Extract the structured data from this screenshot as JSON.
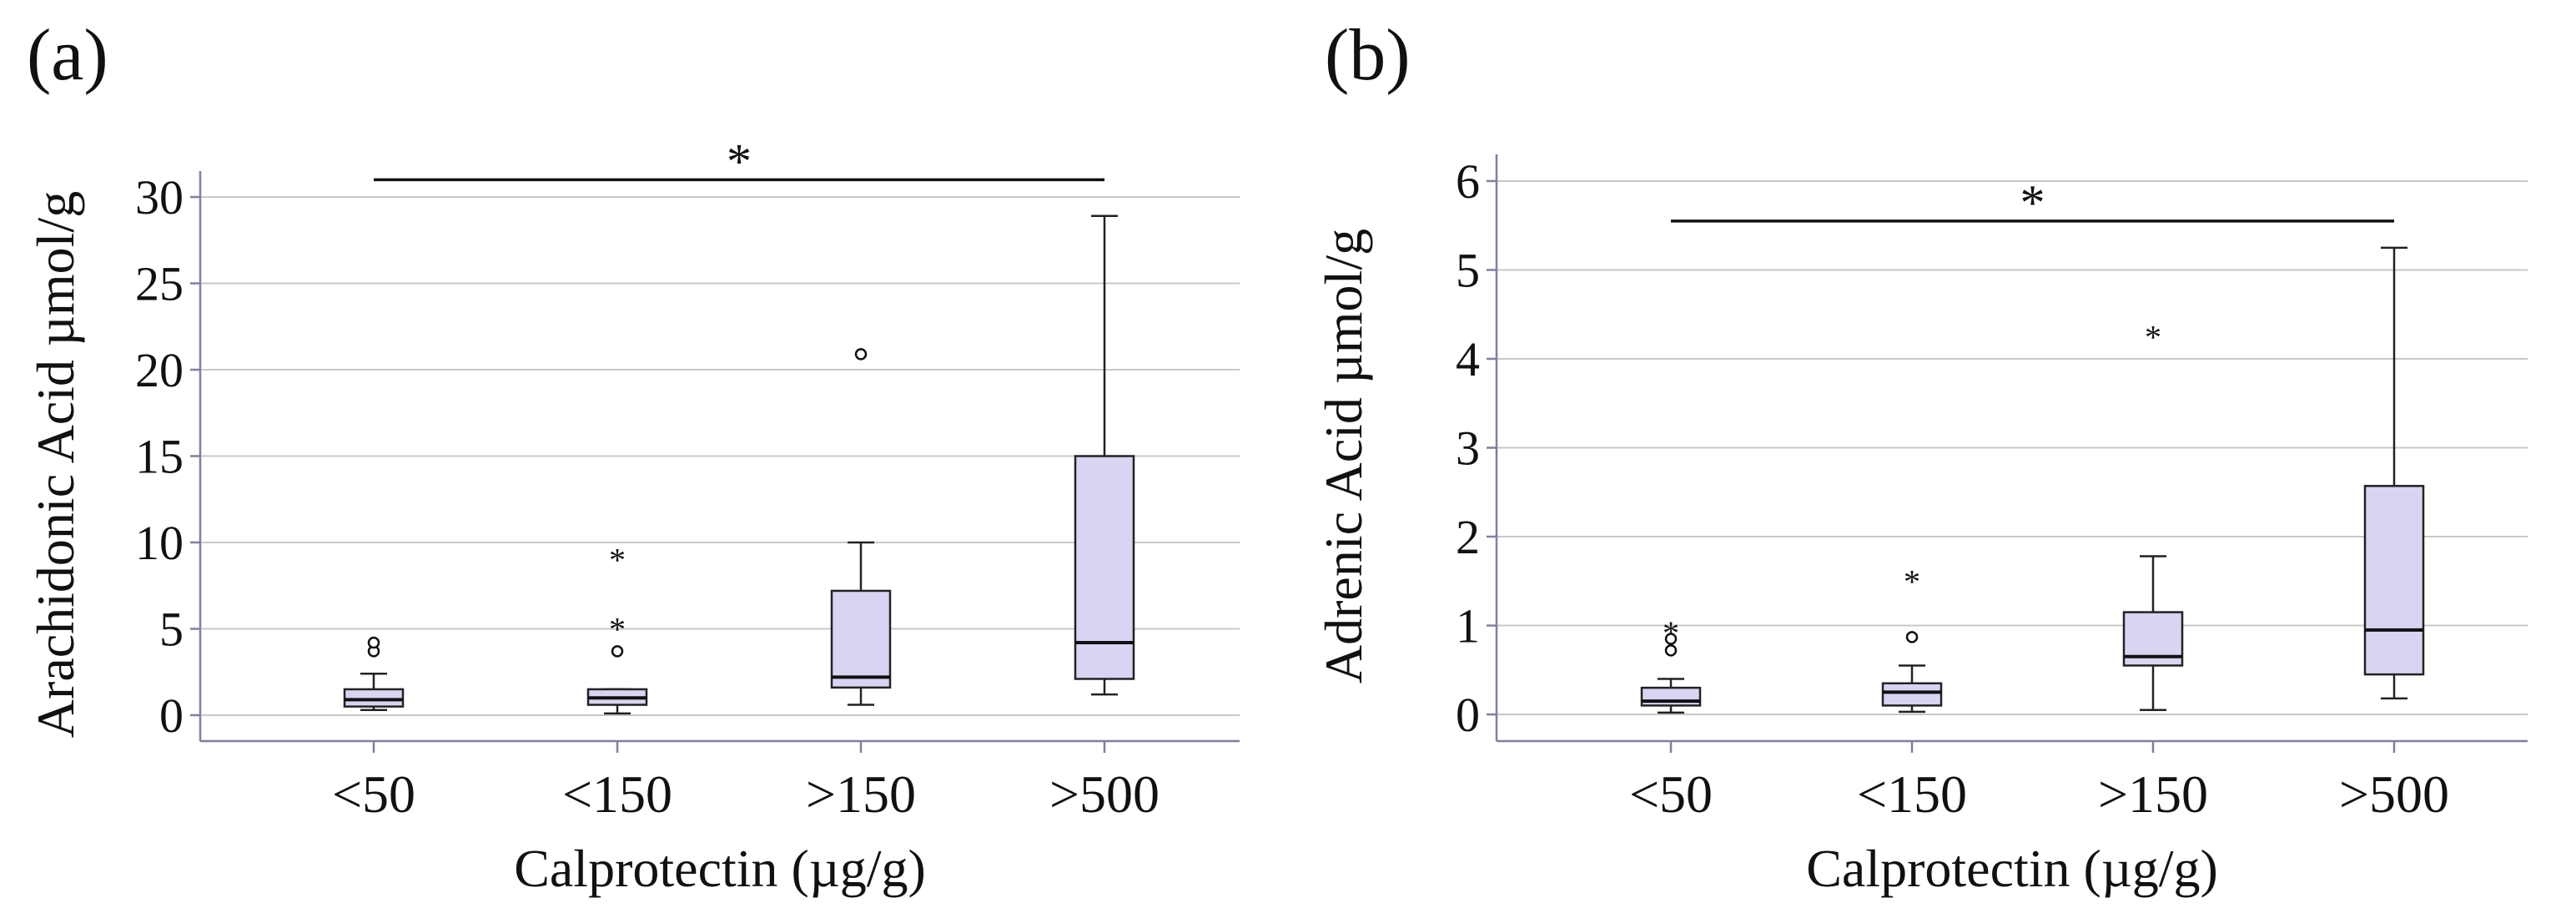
{
  "chart_data": [
    {
      "type": "box",
      "panel_label": "(a)",
      "xlabel": "Calprotectin (µg/g)",
      "ylabel": "Arachidonic Acid µmol/g",
      "categories": [
        "<50",
        "<150",
        ">150",
        ">500"
      ],
      "ylim": [
        -1.5,
        31.5
      ],
      "yticks": [
        0,
        5,
        10,
        15,
        20,
        25,
        30
      ],
      "grid": true,
      "boxes": [
        {
          "category": "<50",
          "min": 0.3,
          "q1": 0.5,
          "median": 0.9,
          "q3": 1.5,
          "max": 2.4
        },
        {
          "category": "<150",
          "min": 0.1,
          "q1": 0.6,
          "median": 1.0,
          "q3": 1.5,
          "max": 1.5
        },
        {
          "category": ">150",
          "min": 0.6,
          "q1": 1.6,
          "median": 2.2,
          "q3": 7.2,
          "max": 10.0
        },
        {
          "category": ">500",
          "min": 1.2,
          "q1": 2.1,
          "median": 4.2,
          "q3": 15.0,
          "max": 28.9
        }
      ],
      "outliers": [
        {
          "category": "<50",
          "value": 3.7,
          "marker": "circle"
        },
        {
          "category": "<50",
          "value": 4.2,
          "marker": "circle"
        },
        {
          "category": "<150",
          "value": 3.7,
          "marker": "circle"
        },
        {
          "category": "<150",
          "value": 5.0,
          "marker": "star"
        },
        {
          "category": "<150",
          "value": 9.0,
          "marker": "star"
        },
        {
          "category": ">150",
          "value": 20.9,
          "marker": "circle"
        }
      ],
      "significance": {
        "from": "<50",
        "to": ">500",
        "value": 31.0,
        "label": "*"
      }
    },
    {
      "type": "box",
      "panel_label": "(b)",
      "xlabel": "Calprotectin (µg/g)",
      "ylabel": "Adrenic Acid µmol/g",
      "categories": [
        "<50",
        "<150",
        ">150",
        ">500"
      ],
      "ylim": [
        -0.3,
        6.3
      ],
      "yticks": [
        0,
        1,
        2,
        3,
        4,
        5,
        6
      ],
      "grid": true,
      "boxes": [
        {
          "category": "<50",
          "min": 0.02,
          "q1": 0.1,
          "median": 0.15,
          "q3": 0.3,
          "max": 0.4
        },
        {
          "category": "<150",
          "min": 0.03,
          "q1": 0.1,
          "median": 0.25,
          "q3": 0.35,
          "max": 0.55
        },
        {
          "category": ">150",
          "min": 0.05,
          "q1": 0.55,
          "median": 0.65,
          "q3": 1.15,
          "max": 1.78
        },
        {
          "category": ">500",
          "min": 0.18,
          "q1": 0.45,
          "median": 0.95,
          "q3": 2.57,
          "max": 5.25
        }
      ],
      "outliers": [
        {
          "category": "<50",
          "value": 0.72,
          "marker": "circle"
        },
        {
          "category": "<50",
          "value": 0.85,
          "marker": "circle"
        },
        {
          "category": "<50",
          "value": 0.92,
          "marker": "star"
        },
        {
          "category": "<150",
          "value": 0.87,
          "marker": "circle"
        },
        {
          "category": "<150",
          "value": 1.5,
          "marker": "star"
        },
        {
          "category": ">150",
          "value": 4.25,
          "marker": "star"
        }
      ],
      "significance": {
        "from": "<50",
        "to": ">500",
        "value": 5.55,
        "label": "*"
      }
    }
  ]
}
